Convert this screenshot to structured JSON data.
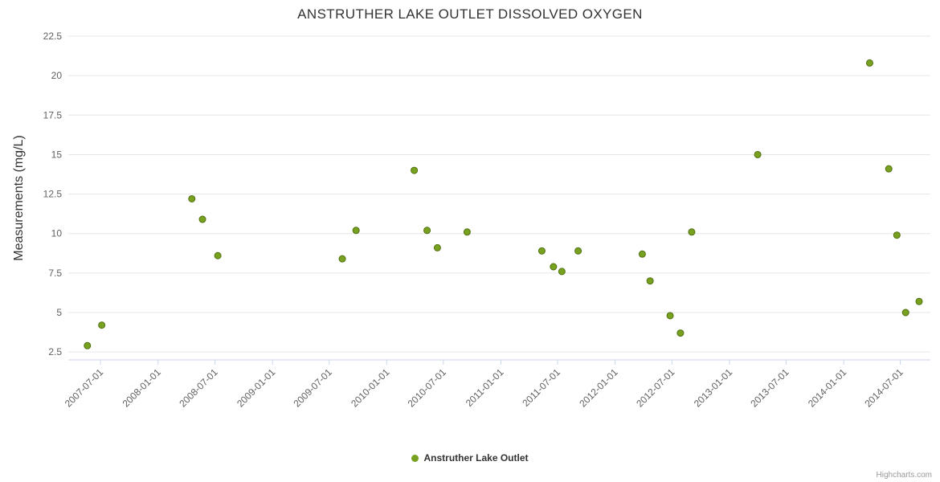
{
  "chart_data": {
    "type": "scatter",
    "title": "ANSTRUTHER LAKE OUTLET DISSOLVED OXYGEN",
    "xlabel": "",
    "ylabel": "Measurements (mg/L)",
    "ylim": [
      2,
      22.5
    ],
    "yticks": [
      2.5,
      5,
      7.5,
      10,
      12.5,
      15,
      17.5,
      20,
      22.5
    ],
    "x_range": [
      "2007-03-20",
      "2014-10-05"
    ],
    "xticks": [
      "2007-07-01",
      "2008-01-01",
      "2008-07-01",
      "2009-01-01",
      "2009-07-01",
      "2010-01-01",
      "2010-07-01",
      "2011-01-01",
      "2011-07-01",
      "2012-01-01",
      "2012-07-01",
      "2013-01-01",
      "2013-07-01",
      "2014-01-01",
      "2014-07-01"
    ],
    "grid": "horizontal",
    "legend_position": "bottom",
    "credits": "Highcharts.com",
    "colors": {
      "point": "#77A11E",
      "point_border": "#4F700F",
      "grid": "#E6E6E6",
      "axis_line": "#CCD6EB",
      "axis_label": "#606060",
      "axis_title": "#333333"
    },
    "series": [
      {
        "name": "Anstruther Lake Outlet",
        "points": [
          {
            "date": "2007-05-20",
            "value": 2.9
          },
          {
            "date": "2007-07-05",
            "value": 4.2
          },
          {
            "date": "2008-04-18",
            "value": 12.2
          },
          {
            "date": "2008-05-22",
            "value": 10.9
          },
          {
            "date": "2008-07-10",
            "value": 8.6
          },
          {
            "date": "2009-08-12",
            "value": 8.4
          },
          {
            "date": "2009-09-25",
            "value": 10.2
          },
          {
            "date": "2010-03-30",
            "value": 14.0
          },
          {
            "date": "2010-05-10",
            "value": 10.2
          },
          {
            "date": "2010-06-12",
            "value": 9.1
          },
          {
            "date": "2010-09-15",
            "value": 10.1
          },
          {
            "date": "2011-05-12",
            "value": 8.9
          },
          {
            "date": "2011-06-18",
            "value": 7.9
          },
          {
            "date": "2011-07-15",
            "value": 7.6
          },
          {
            "date": "2011-09-05",
            "value": 8.9
          },
          {
            "date": "2012-03-28",
            "value": 8.7
          },
          {
            "date": "2012-04-22",
            "value": 7.0
          },
          {
            "date": "2012-06-25",
            "value": 4.8
          },
          {
            "date": "2012-07-28",
            "value": 3.7
          },
          {
            "date": "2012-09-02",
            "value": 10.1
          },
          {
            "date": "2013-04-01",
            "value": 15.0
          },
          {
            "date": "2014-03-25",
            "value": 20.8
          },
          {
            "date": "2014-05-25",
            "value": 14.1
          },
          {
            "date": "2014-06-20",
            "value": 9.9
          },
          {
            "date": "2014-07-18",
            "value": 5.0
          },
          {
            "date": "2014-08-30",
            "value": 5.7
          }
        ]
      }
    ]
  }
}
